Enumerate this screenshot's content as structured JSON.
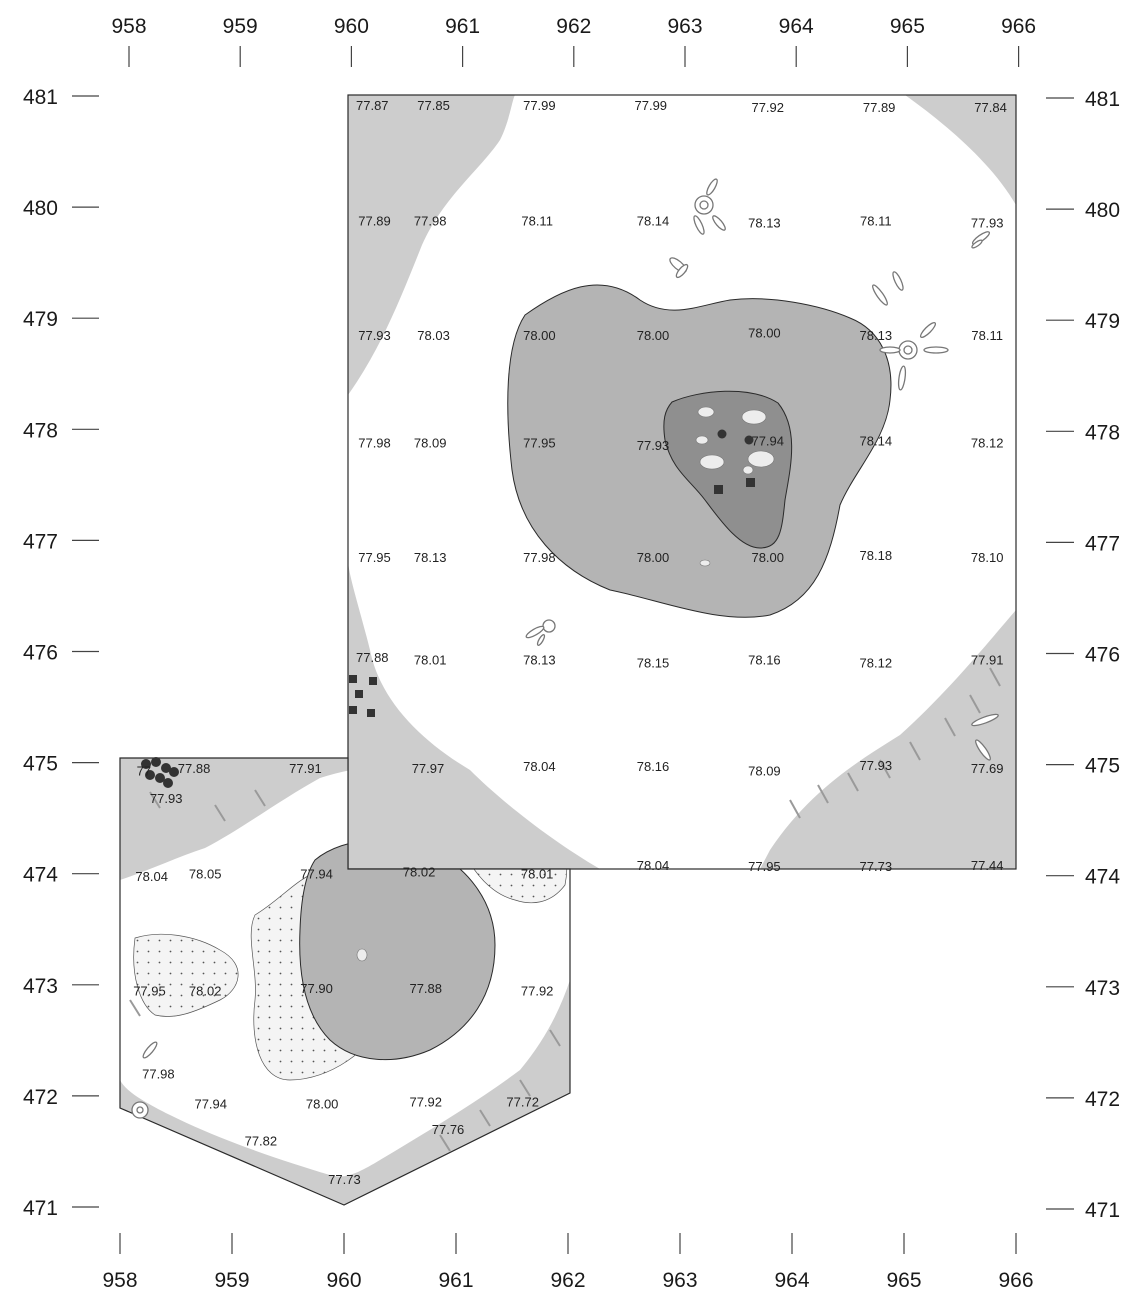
{
  "axes": {
    "x_ticks": [
      "958",
      "959",
      "960",
      "961",
      "962",
      "963",
      "964",
      "965",
      "966"
    ],
    "y_ticks": [
      "481",
      "480",
      "479",
      "478",
      "477",
      "476",
      "475",
      "474",
      "473",
      "472",
      "471"
    ]
  },
  "elevation_labels": [
    {
      "e": 960.2,
      "n": 480.92,
      "value": "77.87"
    },
    {
      "e": 960.75,
      "n": 480.92,
      "value": "77.85"
    },
    {
      "e": 961.7,
      "n": 480.92,
      "value": "77.99"
    },
    {
      "e": 962.7,
      "n": 480.92,
      "value": "77.99"
    },
    {
      "e": 963.75,
      "n": 480.9,
      "value": "77.92"
    },
    {
      "e": 964.75,
      "n": 480.9,
      "value": "77.89"
    },
    {
      "e": 965.75,
      "n": 480.9,
      "value": "77.84"
    },
    {
      "e": 960.22,
      "n": 479.88,
      "value": "77.89"
    },
    {
      "e": 960.72,
      "n": 479.88,
      "value": "77.98"
    },
    {
      "e": 961.68,
      "n": 479.88,
      "value": "78.11"
    },
    {
      "e": 962.72,
      "n": 479.88,
      "value": "78.14"
    },
    {
      "e": 963.72,
      "n": 479.86,
      "value": "78.13"
    },
    {
      "e": 964.72,
      "n": 479.88,
      "value": "78.11"
    },
    {
      "e": 965.72,
      "n": 479.86,
      "value": "77.93"
    },
    {
      "e": 960.22,
      "n": 478.85,
      "value": "77.93"
    },
    {
      "e": 960.75,
      "n": 478.85,
      "value": "78.03"
    },
    {
      "e": 961.7,
      "n": 478.85,
      "value": "78.00"
    },
    {
      "e": 962.72,
      "n": 478.85,
      "value": "78.00"
    },
    {
      "e": 963.72,
      "n": 478.87,
      "value": "78.00"
    },
    {
      "e": 964.72,
      "n": 478.85,
      "value": "78.13"
    },
    {
      "e": 965.72,
      "n": 478.85,
      "value": "78.11"
    },
    {
      "e": 960.22,
      "n": 477.88,
      "value": "77.98"
    },
    {
      "e": 960.72,
      "n": 477.88,
      "value": "78.09"
    },
    {
      "e": 961.7,
      "n": 477.88,
      "value": "77.95"
    },
    {
      "e": 962.72,
      "n": 477.86,
      "value": "77.93"
    },
    {
      "e": 963.75,
      "n": 477.9,
      "value": "77.94"
    },
    {
      "e": 964.72,
      "n": 477.9,
      "value": "78.14"
    },
    {
      "e": 965.72,
      "n": 477.88,
      "value": "78.12"
    },
    {
      "e": 960.22,
      "n": 476.85,
      "value": "77.95"
    },
    {
      "e": 960.72,
      "n": 476.85,
      "value": "78.13"
    },
    {
      "e": 961.7,
      "n": 476.85,
      "value": "77.98"
    },
    {
      "e": 962.72,
      "n": 476.85,
      "value": "78.00"
    },
    {
      "e": 963.75,
      "n": 476.85,
      "value": "78.00"
    },
    {
      "e": 964.72,
      "n": 476.87,
      "value": "78.18"
    },
    {
      "e": 965.72,
      "n": 476.85,
      "value": "78.10"
    },
    {
      "e": 960.2,
      "n": 475.95,
      "value": "77.88"
    },
    {
      "e": 960.72,
      "n": 475.93,
      "value": "78.01"
    },
    {
      "e": 961.7,
      "n": 475.93,
      "value": "78.13"
    },
    {
      "e": 962.72,
      "n": 475.9,
      "value": "78.15"
    },
    {
      "e": 963.72,
      "n": 475.93,
      "value": "78.16"
    },
    {
      "e": 964.72,
      "n": 475.9,
      "value": "78.12"
    },
    {
      "e": 965.72,
      "n": 475.93,
      "value": "77.91"
    },
    {
      "e": 958.15,
      "n": 474.93,
      "value": "77"
    },
    {
      "e": 958.6,
      "n": 474.95,
      "value": "77.88"
    },
    {
      "e": 959.6,
      "n": 474.95,
      "value": "77.91"
    },
    {
      "e": 960.7,
      "n": 474.95,
      "value": "77.97"
    },
    {
      "e": 961.7,
      "n": 474.97,
      "value": "78.04"
    },
    {
      "e": 962.72,
      "n": 474.97,
      "value": "78.16"
    },
    {
      "e": 963.72,
      "n": 474.93,
      "value": "78.09"
    },
    {
      "e": 964.72,
      "n": 474.98,
      "value": "77.93"
    },
    {
      "e": 965.72,
      "n": 474.95,
      "value": "77.69"
    },
    {
      "e": 958.35,
      "n": 474.68,
      "value": "77.93"
    },
    {
      "e": 958.22,
      "n": 473.98,
      "value": "78.04"
    },
    {
      "e": 958.7,
      "n": 474.0,
      "value": "78.05"
    },
    {
      "e": 959.7,
      "n": 474.0,
      "value": "77.94"
    },
    {
      "e": 960.62,
      "n": 474.02,
      "value": "78.02"
    },
    {
      "e": 961.68,
      "n": 474.0,
      "value": "78.01"
    },
    {
      "e": 962.72,
      "n": 474.08,
      "value": "78.04"
    },
    {
      "e": 963.72,
      "n": 474.07,
      "value": "77.95"
    },
    {
      "e": 964.72,
      "n": 474.07,
      "value": "77.73"
    },
    {
      "e": 965.72,
      "n": 474.08,
      "value": "77.44"
    },
    {
      "e": 958.2,
      "n": 472.95,
      "value": "77.95"
    },
    {
      "e": 958.7,
      "n": 472.95,
      "value": "78.02"
    },
    {
      "e": 959.7,
      "n": 472.97,
      "value": "77.90"
    },
    {
      "e": 960.68,
      "n": 472.97,
      "value": "77.88"
    },
    {
      "e": 961.68,
      "n": 472.95,
      "value": "77.92"
    },
    {
      "e": 958.28,
      "n": 472.2,
      "value": "77.98"
    },
    {
      "e": 958.75,
      "n": 471.93,
      "value": "77.94"
    },
    {
      "e": 959.75,
      "n": 471.93,
      "value": "78.00"
    },
    {
      "e": 960.68,
      "n": 471.95,
      "value": "77.92"
    },
    {
      "e": 961.55,
      "n": 471.95,
      "value": "77.72"
    },
    {
      "e": 959.2,
      "n": 471.6,
      "value": "77.82"
    },
    {
      "e": 960.88,
      "n": 471.7,
      "value": "77.76"
    },
    {
      "e": 959.95,
      "n": 471.25,
      "value": "77.73"
    }
  ],
  "colors": {
    "background": "#ffffff",
    "outer_fill": "#cdcdcd",
    "mid_fill": "#b4b4b4",
    "inner_fill": "#8f8f8f",
    "stipple": "#f3f3f3",
    "outline": "#2a2a2a"
  }
}
